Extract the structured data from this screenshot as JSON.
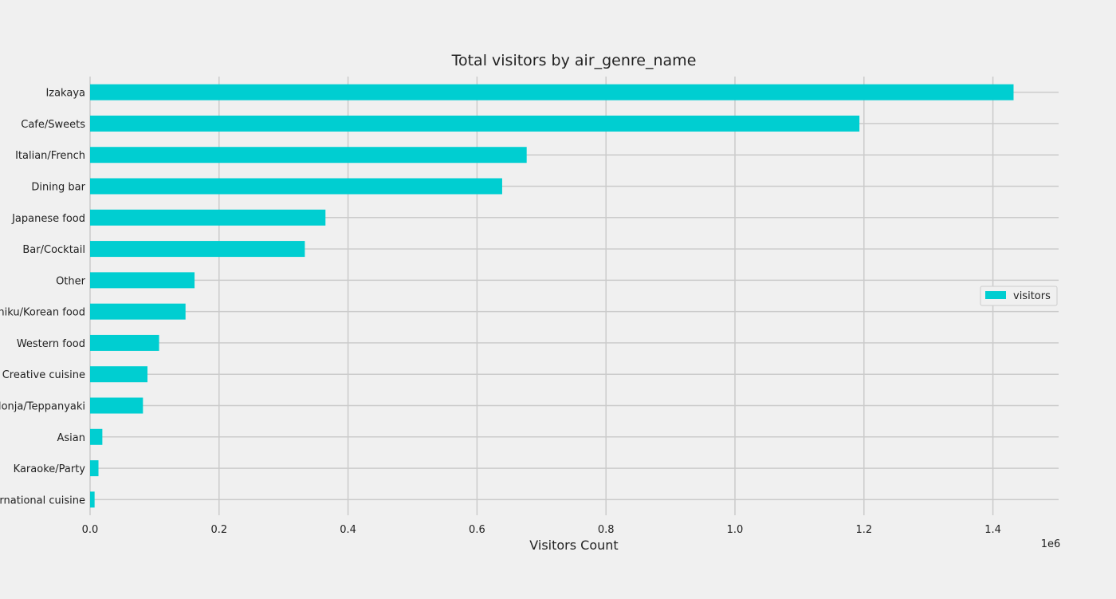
{
  "chart_data": {
    "type": "bar",
    "orientation": "horizontal",
    "title": "Total visitors by air_genre_name",
    "xlabel": "Visitors Count",
    "ylabel": "",
    "x_offset_label": "1e6",
    "xlim": [
      0,
      1.5
    ],
    "x_ticks": [
      "0.0",
      "0.2",
      "0.4",
      "0.6",
      "0.8",
      "1.0",
      "1.2",
      "1.4"
    ],
    "grid": true,
    "legend_position": "center-right",
    "bar_color": "#00ced1",
    "background_color": "#f0f0f0",
    "categories": [
      "Izakaya",
      "Cafe/Sweets",
      "Italian/French",
      "Dining bar",
      "Japanese food",
      "Bar/Cocktail",
      "Other",
      "Yakiniku/Korean food",
      "Western food",
      "Creative cuisine",
      "Okonomiyaki/Monja/Teppanyaki",
      "Asian",
      "Karaoke/Party",
      "International cuisine"
    ],
    "series": [
      {
        "name": "visitors",
        "values": [
          1.432,
          1.193,
          0.677,
          0.639,
          0.365,
          0.333,
          0.162,
          0.148,
          0.107,
          0.089,
          0.082,
          0.019,
          0.013,
          0.007
        ]
      }
    ]
  }
}
